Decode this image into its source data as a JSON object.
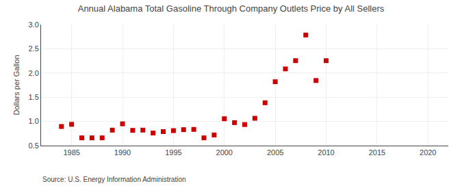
{
  "chart_data": {
    "type": "scatter",
    "title": "Annual Alabama Total Gasoline Through Company Outlets Price by All Sellers",
    "ylabel": "Dollars per Gallon",
    "annotations": [
      "Source: U.S. Energy Information Administration"
    ],
    "x": [
      1984,
      1985,
      1986,
      1987,
      1988,
      1989,
      1990,
      1991,
      1992,
      1993,
      1994,
      1995,
      1996,
      1997,
      1998,
      1999,
      2000,
      2001,
      2002,
      2003,
      2004,
      2005,
      2006,
      2007,
      2008,
      2009,
      2010
    ],
    "values": [
      0.895,
      0.94,
      0.66,
      0.66,
      0.66,
      0.82,
      0.95,
      0.815,
      0.82,
      0.76,
      0.79,
      0.81,
      0.83,
      0.835,
      0.66,
      0.72,
      1.055,
      0.975,
      0.935,
      1.065,
      1.385,
      1.82,
      2.085,
      2.255,
      2.785,
      1.845,
      2.255
    ],
    "color": "#cc0000",
    "marker": "square",
    "xlim": [
      1982,
      2022
    ],
    "ylim": [
      0.5,
      3.0
    ],
    "xticks": [
      1985,
      1990,
      1995,
      2000,
      2005,
      2010,
      2015,
      2020
    ],
    "yticks": [
      0.5,
      {
        "value": 1.0,
        "label": "1.0"
      },
      1.5,
      {
        "value": 2.0,
        "label": "2.0"
      },
      2.5,
      {
        "value": 3.0,
        "label": "3.0"
      }
    ],
    "grid": true
  }
}
